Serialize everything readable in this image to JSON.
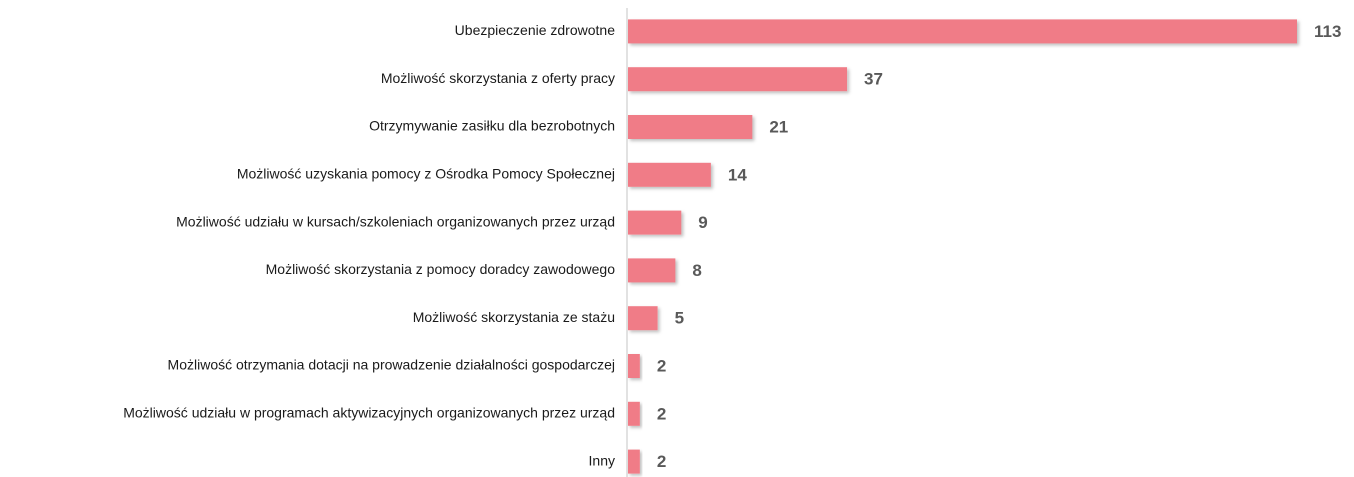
{
  "chart_data": {
    "type": "bar",
    "orientation": "horizontal",
    "color": "#f07c87",
    "categories": [
      "Ubezpieczenie zdrowotne",
      "Możliwość skorzystania z oferty pracy",
      "Otrzymywanie zasiłku dla bezrobotnych",
      "Możliwość uzyskania pomocy z Ośrodka Pomocy Społecznej",
      "Możliwość udziału w kursach/szkoleniach organizowanych przez urząd",
      "Możliwość skorzystania z pomocy doradcy zawodowego",
      "Możliwość skorzystania ze stażu",
      "Możliwość otrzymania dotacji na prowadzenie działalności gospodarczej",
      "Możliwość udziału w programach aktywizacyjnych organizowanych przez urząd",
      "Inny"
    ],
    "values": [
      113,
      37,
      21,
      14,
      9,
      8,
      5,
      2,
      2,
      2
    ],
    "xlim": [
      0,
      113
    ]
  }
}
